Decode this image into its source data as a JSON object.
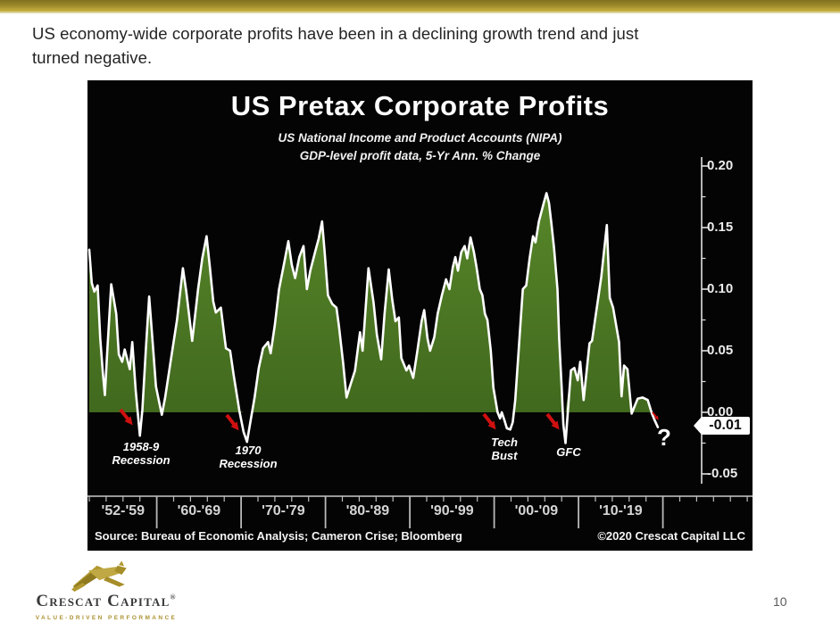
{
  "slide": {
    "header_line1": "US economy-wide corporate profits have been in a declining growth trend and just",
    "header_line2": "turned negative.",
    "page_number": "10"
  },
  "logo": {
    "company_name": "Crescat Capital",
    "registered_mark": "®",
    "tagline": "VALUE-DRIVEN PERFORMANCE"
  },
  "chart_data": {
    "type": "area",
    "title": "US Pretax Corporate Profits",
    "subtitle1": "US National Income and Product Accounts (NIPA)",
    "subtitle2": "GDP-level profit data, 5-Yr Ann. % Change",
    "source": "Source: Bureau of Economic Analysis; Cameron Crise; Bloomberg",
    "copyright": "©2020 Crescat Capital LLC",
    "current_value_label": "-0.01",
    "xlabel": "",
    "ylabel": "",
    "x_categories": [
      "'52-'59",
      "'60-'69",
      "'70-'79",
      "'80-'89",
      "'90-'99",
      "'00-'09",
      "'10-'19"
    ],
    "x_category_bounds_years": [
      1952,
      1960,
      1970,
      1980,
      1990,
      2000,
      2010,
      2020
    ],
    "y_ticks": [
      0.2,
      0.15,
      0.1,
      0.05,
      0.0,
      -0.05
    ],
    "y_tick_labels": [
      "0.20",
      "0.15",
      "0.10",
      "0.05",
      "0.00",
      "-0.05"
    ],
    "y_minor_ticks": [
      0.175,
      0.125,
      0.075,
      0.025,
      -0.025
    ],
    "ylim": [
      -0.065,
      0.21
    ],
    "xlim_years": [
      1952,
      2020.5
    ],
    "grid": false,
    "legend": "none",
    "annotations": [
      {
        "line1": "1958-9",
        "line2": "Recession"
      },
      {
        "line1": "1970",
        "line2": "Recession"
      },
      {
        "line1": "Tech",
        "line2": "Bust"
      },
      {
        "line1": "GFC",
        "line2": ""
      },
      {
        "line1": "?",
        "line2": ""
      }
    ],
    "colors": {
      "background": "#040404",
      "area_fill": "#4d7c27",
      "line": "#ffffff",
      "arrow": "#d01010",
      "axis": "#e0e0e0"
    },
    "series": [
      {
        "name": "US pretax corporate profits, 5-yr annualized % change",
        "points": [
          [
            1952.0,
            0.132
          ],
          [
            1952.3,
            0.105
          ],
          [
            1952.6,
            0.098
          ],
          [
            1953.0,
            0.103
          ],
          [
            1953.3,
            0.06
          ],
          [
            1953.6,
            0.033
          ],
          [
            1953.85,
            0.014
          ],
          [
            1954.1,
            0.045
          ],
          [
            1954.6,
            0.104
          ],
          [
            1955.2,
            0.08
          ],
          [
            1955.5,
            0.047
          ],
          [
            1955.9,
            0.041
          ],
          [
            1956.2,
            0.051
          ],
          [
            1956.8,
            0.035
          ],
          [
            1957.1,
            0.057
          ],
          [
            1957.5,
            0.018
          ],
          [
            1957.8,
            -0.004
          ],
          [
            1958.0,
            -0.019
          ],
          [
            1958.3,
            0.002
          ],
          [
            1958.7,
            0.05
          ],
          [
            1959.1,
            0.094
          ],
          [
            1959.5,
            0.058
          ],
          [
            1959.9,
            0.021
          ],
          [
            1960.3,
            0.008
          ],
          [
            1960.6,
            -0.002
          ],
          [
            1961.0,
            0.012
          ],
          [
            1961.7,
            0.044
          ],
          [
            1962.4,
            0.075
          ],
          [
            1963.1,
            0.117
          ],
          [
            1963.5,
            0.098
          ],
          [
            1964.2,
            0.058
          ],
          [
            1964.9,
            0.1
          ],
          [
            1965.4,
            0.125
          ],
          [
            1965.9,
            0.143
          ],
          [
            1966.3,
            0.118
          ],
          [
            1966.7,
            0.09
          ],
          [
            1967.0,
            0.081
          ],
          [
            1967.6,
            0.085
          ],
          [
            1967.9,
            0.068
          ],
          [
            1968.2,
            0.052
          ],
          [
            1968.7,
            0.05
          ],
          [
            1969.1,
            0.031
          ],
          [
            1969.8,
            0.001
          ],
          [
            1970.3,
            -0.016
          ],
          [
            1970.7,
            -0.024
          ],
          [
            1971.2,
            -0.004
          ],
          [
            1971.6,
            0.012
          ],
          [
            1972.1,
            0.036
          ],
          [
            1972.6,
            0.052
          ],
          [
            1973.2,
            0.057
          ],
          [
            1973.5,
            0.048
          ],
          [
            1974.0,
            0.071
          ],
          [
            1974.5,
            0.1
          ],
          [
            1975.1,
            0.121
          ],
          [
            1975.6,
            0.139
          ],
          [
            1976.0,
            0.12
          ],
          [
            1976.4,
            0.109
          ],
          [
            1976.9,
            0.126
          ],
          [
            1977.4,
            0.135
          ],
          [
            1977.8,
            0.1
          ],
          [
            1978.2,
            0.115
          ],
          [
            1978.8,
            0.131
          ],
          [
            1979.2,
            0.141
          ],
          [
            1979.6,
            0.155
          ],
          [
            1979.9,
            0.13
          ],
          [
            1980.3,
            0.095
          ],
          [
            1980.8,
            0.088
          ],
          [
            1981.3,
            0.085
          ],
          [
            1981.6,
            0.07
          ],
          [
            1982.1,
            0.04
          ],
          [
            1982.5,
            0.012
          ],
          [
            1982.9,
            0.021
          ],
          [
            1983.5,
            0.034
          ],
          [
            1984.1,
            0.065
          ],
          [
            1984.4,
            0.05
          ],
          [
            1985.1,
            0.117
          ],
          [
            1985.7,
            0.089
          ],
          [
            1986.1,
            0.063
          ],
          [
            1986.6,
            0.043
          ],
          [
            1987.0,
            0.08
          ],
          [
            1987.5,
            0.116
          ],
          [
            1987.9,
            0.092
          ],
          [
            1988.3,
            0.074
          ],
          [
            1988.7,
            0.077
          ],
          [
            1989.0,
            0.044
          ],
          [
            1989.6,
            0.034
          ],
          [
            1989.9,
            0.038
          ],
          [
            1990.4,
            0.028
          ],
          [
            1990.9,
            0.05
          ],
          [
            1991.4,
            0.074
          ],
          [
            1991.7,
            0.083
          ],
          [
            1992.1,
            0.06
          ],
          [
            1992.4,
            0.05
          ],
          [
            1992.9,
            0.061
          ],
          [
            1993.3,
            0.08
          ],
          [
            1993.8,
            0.095
          ],
          [
            1994.3,
            0.108
          ],
          [
            1994.7,
            0.1
          ],
          [
            1995.1,
            0.118
          ],
          [
            1995.4,
            0.126
          ],
          [
            1995.7,
            0.115
          ],
          [
            1996.1,
            0.13
          ],
          [
            1996.5,
            0.135
          ],
          [
            1996.8,
            0.125
          ],
          [
            1997.2,
            0.142
          ],
          [
            1997.6,
            0.13
          ],
          [
            1997.9,
            0.118
          ],
          [
            1998.3,
            0.1
          ],
          [
            1998.6,
            0.095
          ],
          [
            1998.9,
            0.08
          ],
          [
            1999.2,
            0.075
          ],
          [
            1999.6,
            0.05
          ],
          [
            1999.9,
            0.02
          ],
          [
            2000.4,
            0.0
          ],
          [
            2000.7,
            -0.005
          ],
          [
            2000.9,
            0.0
          ],
          [
            2001.2,
            -0.006
          ],
          [
            2001.5,
            -0.013
          ],
          [
            2001.9,
            -0.014
          ],
          [
            2002.2,
            -0.008
          ],
          [
            2002.5,
            0.01
          ],
          [
            2002.9,
            0.05
          ],
          [
            2003.2,
            0.08
          ],
          [
            2003.4,
            0.1
          ],
          [
            2003.8,
            0.103
          ],
          [
            2004.2,
            0.125
          ],
          [
            2004.6,
            0.143
          ],
          [
            2004.9,
            0.138
          ],
          [
            2005.3,
            0.155
          ],
          [
            2005.8,
            0.168
          ],
          [
            2006.2,
            0.178
          ],
          [
            2006.5,
            0.17
          ],
          [
            2006.8,
            0.152
          ],
          [
            2007.1,
            0.133
          ],
          [
            2007.5,
            0.1
          ],
          [
            2007.7,
            0.06
          ],
          [
            2008.0,
            0.02
          ],
          [
            2008.2,
            -0.01
          ],
          [
            2008.45,
            -0.025
          ],
          [
            2009.1,
            0.034
          ],
          [
            2009.5,
            0.036
          ],
          [
            2009.9,
            0.026
          ],
          [
            2010.2,
            0.041
          ],
          [
            2010.6,
            0.01
          ],
          [
            2011.3,
            0.056
          ],
          [
            2011.6,
            0.058
          ],
          [
            2012.0,
            0.077
          ],
          [
            2012.7,
            0.11
          ],
          [
            2013.35,
            0.152
          ],
          [
            2013.7,
            0.093
          ],
          [
            2014.1,
            0.085
          ],
          [
            2014.8,
            0.057
          ],
          [
            2015.1,
            0.013
          ],
          [
            2015.4,
            0.038
          ],
          [
            2015.8,
            0.035
          ],
          [
            2016.3,
            -0.001
          ],
          [
            2017.0,
            0.011
          ],
          [
            2017.6,
            0.012
          ],
          [
            2018.2,
            0.01
          ],
          [
            2018.7,
            -0.001
          ],
          [
            2019.0,
            -0.006
          ],
          [
            2019.4,
            -0.012
          ]
        ]
      }
    ]
  }
}
